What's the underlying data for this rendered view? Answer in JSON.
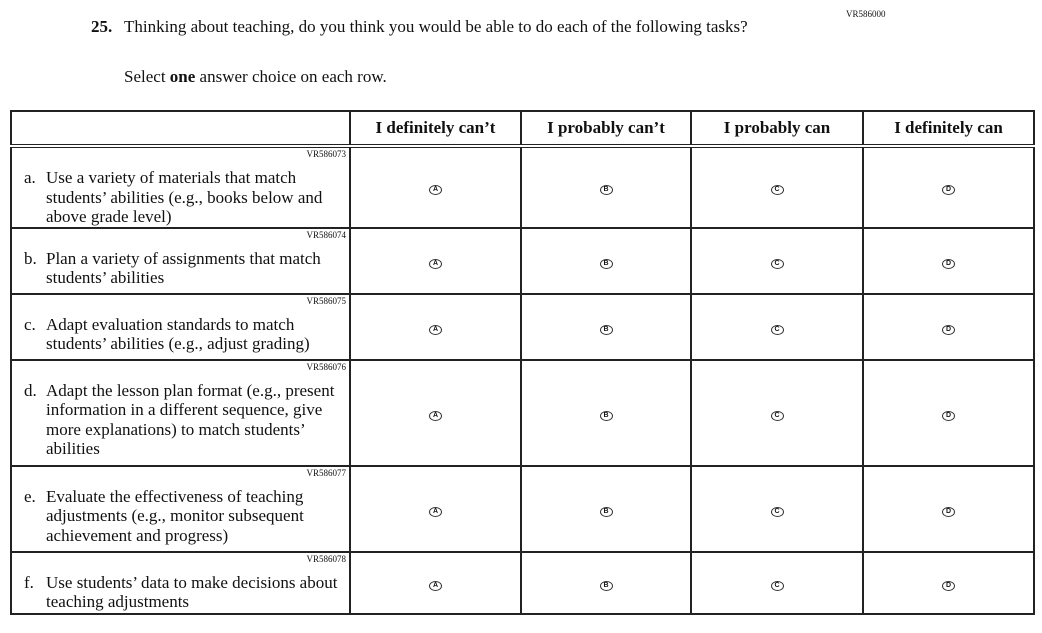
{
  "question": {
    "id": "VR586000",
    "number": "25.",
    "text": "Thinking about teaching, do you think you would be able to do each of the following tasks?",
    "instruction_pre": "Select ",
    "instruction_bold": "one",
    "instruction_post": " answer choice on each row."
  },
  "columns": [
    "I definitely can’t",
    "I probably can’t",
    "I probably can",
    "I definitely can"
  ],
  "bubbles": [
    "A",
    "B",
    "C",
    "D"
  ],
  "rows": [
    {
      "id": "VR586073",
      "letter": "a.",
      "text": "Use a variety of materials that match students’ abilities (e.g., books below and above grade level)"
    },
    {
      "id": "VR586074",
      "letter": "b.",
      "text": "Plan a variety of assignments that match students’ abilities"
    },
    {
      "id": "VR586075",
      "letter": "c.",
      "text": "Adapt evaluation standards to match students’ abilities (e.g., adjust grading)"
    },
    {
      "id": "VR586076",
      "letter": "d.",
      "text": "Adapt the lesson plan format (e.g., present information in a different sequence, give more explanations) to match students’ abilities"
    },
    {
      "id": "VR586077",
      "letter": "e.",
      "text": "Evaluate the effectiveness of teaching adjustments (e.g., monitor subsequent achievement and progress)"
    },
    {
      "id": "VR586078",
      "letter": "f.",
      "text": "Use students’ data to make decisions about teaching adjustments"
    }
  ]
}
